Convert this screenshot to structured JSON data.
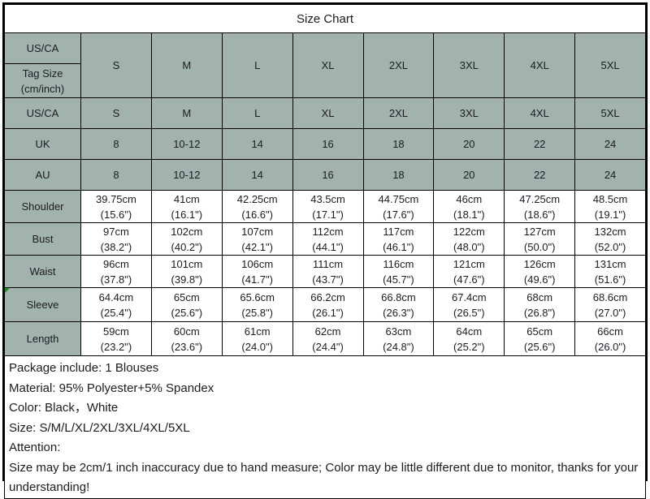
{
  "title": "Size Chart",
  "colors": {
    "shaded_bg": "#a2b3ad",
    "border": "#000000",
    "text": "#1b1b22",
    "comment_marker": "#1e8a1e"
  },
  "header": {
    "corner_top": "US/CA",
    "corner_bottom_line1": "Tag Size",
    "corner_bottom_line2": "(cm/inch)",
    "sizes": [
      "S",
      "M",
      "L",
      "XL",
      "2XL",
      "3XL",
      "4XL",
      "5XL"
    ]
  },
  "rows": [
    {
      "label": "US/CA",
      "values": [
        "S",
        "M",
        "L",
        "XL",
        "2XL",
        "3XL",
        "4XL",
        "5XL"
      ]
    },
    {
      "label": "UK",
      "values": [
        "8",
        "10-12",
        "14",
        "16",
        "18",
        "20",
        "22",
        "24"
      ]
    },
    {
      "label": "AU",
      "values": [
        "8",
        "10-12",
        "14",
        "16",
        "18",
        "20",
        "22",
        "24"
      ]
    },
    {
      "label": "Shoulder",
      "cm": [
        "39.75cm",
        "41cm",
        "42.25cm",
        "43.5cm",
        "44.75cm",
        "46cm",
        "47.25cm",
        "48.5cm"
      ],
      "in": [
        "(15.6\")",
        "(16.1\")",
        "(16.6\")",
        "(17.1\")",
        "(17.6\")",
        "(18.1\")",
        "(18.6\")",
        "(19.1\")"
      ]
    },
    {
      "label": "Bust",
      "cm": [
        "97cm",
        "102cm",
        "107cm",
        "112cm",
        "117cm",
        "122cm",
        "127cm",
        "132cm"
      ],
      "in": [
        "(38.2\")",
        "(40.2\")",
        "(42.1\")",
        "(44.1\")",
        "(46.1\")",
        "(48.0\")",
        "(50.0\")",
        "(52.0\")"
      ]
    },
    {
      "label": "Waist",
      "cm": [
        "96cm",
        "101cm",
        "106cm",
        "111cm",
        "116cm",
        "121cm",
        "126cm",
        "131cm"
      ],
      "in": [
        "(37.8\")",
        "(39.8\")",
        "(41.7\")",
        "(43.7\")",
        "(45.7\")",
        "(47.6\")",
        "(49.6\")",
        "(51.6\")"
      ]
    },
    {
      "label": "Sleeve",
      "cm": [
        "64.4cm",
        "65cm",
        "65.6cm",
        "66.2cm",
        "66.8cm",
        "67.4cm",
        "68cm",
        "68.6cm"
      ],
      "in": [
        "(25.4\")",
        "(25.6\")",
        "(25.8\")",
        "(26.1\")",
        "(26.3\")",
        "(26.5\")",
        "(26.8\")",
        "(27.0\")"
      ]
    },
    {
      "label": "Length",
      "cm": [
        "59cm",
        "60cm",
        "61cm",
        "62cm",
        "63cm",
        "64cm",
        "65cm",
        "66cm"
      ],
      "in": [
        "(23.2\")",
        "(23.6\")",
        "(24.0\")",
        "(24.4\")",
        "(24.8\")",
        "(25.2\")",
        "(25.6\")",
        "(26.0\")"
      ]
    }
  ],
  "footer": {
    "lines": [
      "Package include: 1 Blouses",
      "Material:  95% Polyester+5% Spandex",
      "Color:  Black，White",
      "Size: S/M/L/XL/2XL/3XL/4XL/5XL",
      "Attention:",
      "Size may be 2cm/1 inch inaccuracy due to hand measure; Color may be little different due to monitor, thanks for your understanding!"
    ]
  }
}
